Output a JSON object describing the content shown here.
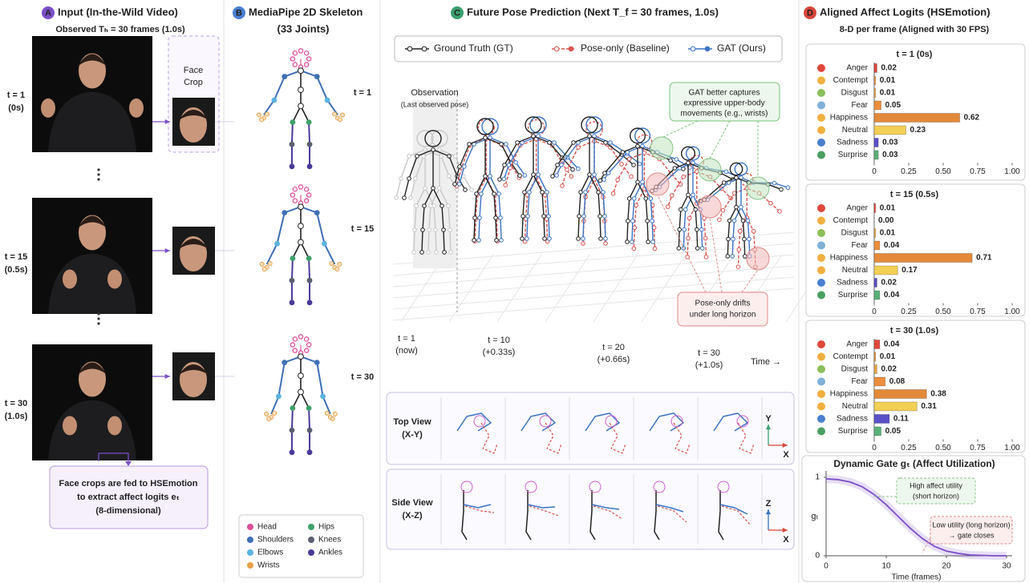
{
  "panel_a": {
    "badge": "A",
    "title": "Input (In-the-Wild Video)",
    "subtitle": "Observed Tₕ = 30 frames (1.0s)",
    "frames": [
      {
        "label": "t = 1",
        "time": "(0s)"
      },
      {
        "label": "t = 15",
        "time": "(0.5s)"
      },
      {
        "label": "t = 30",
        "time": "(1.0s)"
      }
    ],
    "face_crop": [
      "Face",
      "Crop"
    ],
    "note": [
      "Face crops are fed to HSEmotion",
      "to extract affect logits eₜ",
      "(8-dimensional)"
    ]
  },
  "panel_b": {
    "badge": "B",
    "title": "MediaPipe 2D Skeleton",
    "subtitle": "(33 Joints)",
    "frames": [
      "t = 1",
      "t = 15",
      "t = 30"
    ],
    "legend": [
      {
        "name": "Head",
        "color": "#e0509a"
      },
      {
        "name": "Shoulders",
        "color": "#3f6fb5"
      },
      {
        "name": "Elbows",
        "color": "#5ab4e0"
      },
      {
        "name": "Wrists",
        "color": "#e8a04a"
      },
      {
        "name": "Hips",
        "color": "#3ea06a"
      },
      {
        "name": "Knees",
        "color": "#5a6070"
      },
      {
        "name": "Ankles",
        "color": "#4a3a9a"
      }
    ]
  },
  "panel_c": {
    "badge": "C",
    "title": "Future Pose Prediction (Next T_f = 30 frames, 1.0s)",
    "legend": [
      {
        "name": "Ground Truth (GT)",
        "color": "#222222"
      },
      {
        "name": "Pose-only (Baseline)",
        "color": "#d9534f"
      },
      {
        "name": "GAT (Ours)",
        "color": "#3b73c4"
      }
    ],
    "observation": "Observation",
    "observation_note": "(Last observed pose)",
    "callouts": [
      [
        "GAT better captures",
        "expressive upper-body",
        "movements (e.g., wrists)"
      ],
      [
        "Pose-only drifts",
        "under long horizon"
      ]
    ],
    "time_marks": [
      {
        "label": "t = 1",
        "time": "(now)"
      },
      {
        "label": "t = 10",
        "time": "(+0.33s)"
      },
      {
        "label": "t = 20",
        "time": "(+0.66s)"
      },
      {
        "label": "t = 30",
        "time": "(+1.0s)"
      }
    ],
    "time_axis": "Time →",
    "views": [
      {
        "name": "Top View",
        "axes": "(X-Y)",
        "vertical": "Y",
        "horizontal": "X"
      },
      {
        "name": "Side View",
        "axes": "(X-Z)",
        "vertical": "Z",
        "horizontal": "X"
      }
    ]
  },
  "panel_d": {
    "badge": "D",
    "title": "Aligned Affect Logits (HSEmotion)",
    "subtitle": "8-D per frame (Aligned with 30 FPS)"
  },
  "chart_data": [
    {
      "type": "bar",
      "orientation": "horizontal",
      "title": "t = 1 (0s)",
      "categories": [
        "Anger",
        "Contempt",
        "Disgust",
        "Fear",
        "Happiness",
        "Neutral",
        "Sadness",
        "Surprise"
      ],
      "values": [
        0.02,
        0.01,
        0.01,
        0.05,
        0.62,
        0.23,
        0.03,
        0.03
      ],
      "value_labels": [
        "0.02",
        "0.01",
        "0.01",
        "0.05",
        "0.62",
        "0.23",
        "0.03",
        "0.03"
      ],
      "colors": [
        "#e0473c",
        "#e8903a",
        "#e8a545",
        "#ec8f3e",
        "#e38a3a",
        "#f2cf55",
        "#5b4fc7",
        "#5bb07a"
      ],
      "xlim": [
        0,
        1
      ],
      "xticks": [
        0,
        0.25,
        {
          "value": 0.5,
          "label": "0.50"
        },
        0.75,
        {
          "value": 1,
          "label": "1.00"
        }
      ]
    },
    {
      "type": "bar",
      "orientation": "horizontal",
      "title": "t = 15 (0.5s)",
      "categories": [
        "Anger",
        "Contempt",
        "Disgust",
        "Fear",
        "Happiness",
        "Neutral",
        "Sadness",
        "Surprise"
      ],
      "values": [
        0.01,
        0.0,
        0.01,
        0.04,
        0.71,
        0.17,
        0.02,
        0.04
      ],
      "value_labels": [
        "0.01",
        "0.00",
        "0.01",
        "0.04",
        "0.71",
        "0.17",
        "0.02",
        "0.04"
      ],
      "colors": [
        "#e0473c",
        "#e8903a",
        "#e8a545",
        "#ec8f3e",
        "#e38a3a",
        "#f2cf55",
        "#5b4fc7",
        "#5bb07a"
      ],
      "xlim": [
        0,
        1
      ],
      "xticks": [
        0,
        0.25,
        {
          "value": 0.5,
          "label": "0.50"
        },
        0.75,
        {
          "value": 1,
          "label": "1.00"
        }
      ]
    },
    {
      "type": "bar",
      "orientation": "horizontal",
      "title": "t = 30 (1.0s)",
      "categories": [
        "Anger",
        "Contempt",
        "Disgust",
        "Fear",
        "Happiness",
        "Neutral",
        "Sadness",
        "Surprise"
      ],
      "values": [
        0.04,
        0.01,
        0.02,
        0.08,
        0.38,
        0.31,
        0.11,
        0.05
      ],
      "value_labels": [
        "0.04",
        "0.01",
        "0.02",
        "0.08",
        "0.38",
        "0.31",
        "0.11",
        "0.05"
      ],
      "colors": [
        "#e0473c",
        "#e8903a",
        "#e8a545",
        "#ec8f3e",
        "#e38a3a",
        "#f2cf55",
        "#5b4fc7",
        "#5bb07a"
      ],
      "xlim": [
        0,
        1
      ],
      "xticks": [
        0,
        0.25,
        {
          "value": 0.5,
          "label": "0.50"
        },
        0.75,
        {
          "value": 1,
          "label": "1.00"
        }
      ]
    },
    {
      "type": "line",
      "title": "Dynamic Gate gₜ (Affect Utilization)",
      "ylabel": "gₜ",
      "xlabel": "Time (frames)",
      "x": [
        0,
        2,
        4,
        6,
        8,
        10,
        12,
        14,
        16,
        18,
        20,
        22,
        24,
        26,
        28,
        30
      ],
      "values": [
        0.98,
        0.97,
        0.94,
        0.88,
        0.78,
        0.65,
        0.5,
        0.35,
        0.22,
        0.12,
        0.06,
        0.03,
        0.01,
        0.005,
        0,
        0
      ],
      "color": "#7b4fc9",
      "xlim": [
        0,
        30
      ],
      "ylim": [
        0,
        1
      ],
      "xticks": [
        0,
        10,
        20,
        30
      ],
      "yticks": [
        0,
        1
      ],
      "annotations": [
        [
          "High affect utility",
          "(short horizon)"
        ],
        [
          "Low utility (long horizon)",
          "→ gate closes"
        ]
      ]
    }
  ]
}
